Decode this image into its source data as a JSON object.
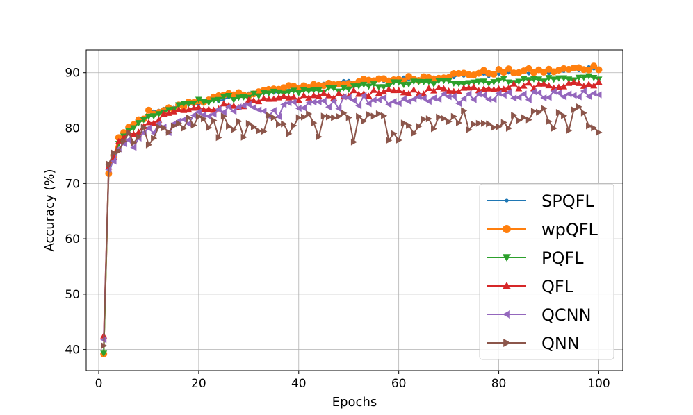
{
  "chart_data": {
    "type": "line",
    "title": "",
    "xlabel": "Epochs",
    "ylabel": "Accuracy (%)",
    "xlim": [
      -2.5,
      104.8
    ],
    "ylim": [
      36.2,
      94.1
    ],
    "xticks": [
      "0",
      "20",
      "40",
      "60",
      "80",
      "100"
    ],
    "yticks": [
      "40",
      "50",
      "60",
      "70",
      "80",
      "90"
    ],
    "grid": true,
    "legend_position": "lower-right",
    "series": [
      {
        "name": "SPQFL",
        "color": "#1f77b4",
        "marker": "point",
        "anchors": [
          [
            1,
            39.5
          ],
          [
            2,
            71.8
          ],
          [
            3,
            74.5
          ],
          [
            4,
            78
          ],
          [
            6,
            79.5
          ],
          [
            10,
            82.5
          ],
          [
            15,
            83.8
          ],
          [
            20,
            84.5
          ],
          [
            30,
            86
          ],
          [
            40,
            87.2
          ],
          [
            50,
            88.4
          ],
          [
            60,
            88.8
          ],
          [
            70,
            89.3
          ],
          [
            80,
            89.8
          ],
          [
            90,
            90.2
          ],
          [
            100,
            90.8
          ]
        ],
        "noise": 0.35
      },
      {
        "name": "wpQFL",
        "color": "#ff7f0e",
        "marker": "circle",
        "anchors": [
          [
            1,
            39.2
          ],
          [
            2,
            71.8
          ],
          [
            3,
            75
          ],
          [
            4,
            78.2
          ],
          [
            6,
            79.8
          ],
          [
            10,
            82.8
          ],
          [
            15,
            83.5
          ],
          [
            20,
            85
          ],
          [
            30,
            86.3
          ],
          [
            40,
            87.5
          ],
          [
            50,
            88.2
          ],
          [
            60,
            88.8
          ],
          [
            70,
            89.5
          ],
          [
            80,
            90.2
          ],
          [
            90,
            90.3
          ],
          [
            100,
            91
          ]
        ],
        "noise": 0.5
      },
      {
        "name": "PQFL",
        "color": "#2ca02c",
        "marker": "triangle-down",
        "anchors": [
          [
            1,
            39.3
          ],
          [
            2,
            73
          ],
          [
            3,
            74.8
          ],
          [
            4,
            77.5
          ],
          [
            6,
            79.5
          ],
          [
            10,
            82
          ],
          [
            15,
            83.5
          ],
          [
            20,
            84.8
          ],
          [
            30,
            85.8
          ],
          [
            40,
            86.5
          ],
          [
            50,
            87.2
          ],
          [
            60,
            88
          ],
          [
            70,
            88.3
          ],
          [
            80,
            88.5
          ],
          [
            90,
            88.8
          ],
          [
            100,
            89.2
          ]
        ],
        "noise": 0.45
      },
      {
        "name": "QFL",
        "color": "#d62728",
        "marker": "triangle-up",
        "anchors": [
          [
            1,
            42.5
          ],
          [
            2,
            73
          ],
          [
            3,
            74.8
          ],
          [
            4,
            77
          ],
          [
            6,
            78.8
          ],
          [
            10,
            80.5
          ],
          [
            15,
            83
          ],
          [
            20,
            83.5
          ],
          [
            30,
            84.5
          ],
          [
            40,
            85.5
          ],
          [
            50,
            86.2
          ],
          [
            60,
            86.5
          ],
          [
            70,
            87
          ],
          [
            80,
            87.5
          ],
          [
            90,
            87.8
          ],
          [
            100,
            88
          ]
        ],
        "noise": 0.6
      },
      {
        "name": "QCNN",
        "color": "#9467bd",
        "marker": "triangle-left",
        "anchors": [
          [
            1,
            41.8
          ],
          [
            2,
            72.5
          ],
          [
            3,
            74
          ],
          [
            4,
            77
          ],
          [
            6,
            78
          ],
          [
            10,
            79.5
          ],
          [
            15,
            81
          ],
          [
            20,
            82.5
          ],
          [
            30,
            83.5
          ],
          [
            40,
            84
          ],
          [
            50,
            85
          ],
          [
            60,
            85.5
          ],
          [
            70,
            85.5
          ],
          [
            80,
            85.8
          ],
          [
            90,
            86
          ],
          [
            100,
            86
          ]
        ],
        "noise": 0.8
      },
      {
        "name": "QNN",
        "color": "#8c564b",
        "marker": "triangle-right",
        "anchors": [
          [
            1,
            40.7
          ],
          [
            2,
            73.5
          ],
          [
            3,
            75.5
          ],
          [
            4,
            77.2
          ],
          [
            6,
            78
          ],
          [
            10,
            79
          ],
          [
            15,
            80
          ],
          [
            20,
            81
          ],
          [
            30,
            81
          ],
          [
            40,
            81.2
          ],
          [
            50,
            81.5
          ],
          [
            60,
            81.5
          ],
          [
            70,
            81.8
          ],
          [
            80,
            82.2
          ],
          [
            90,
            82.5
          ],
          [
            95,
            83.5
          ],
          [
            100,
            80.3
          ]
        ],
        "noise": 1.4
      }
    ]
  }
}
